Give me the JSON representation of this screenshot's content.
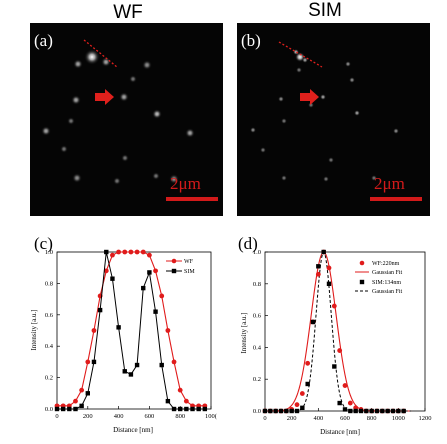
{
  "titles": {
    "left": "WF",
    "right": "SIM"
  },
  "panels": {
    "a": "(a)",
    "b": "(b)",
    "c": "(c)",
    "d": "(d)"
  },
  "scale_bar": {
    "a": "2μm",
    "b": "2μm"
  },
  "colors": {
    "wf": "#e01b1b",
    "sim": "#000000",
    "arrow": "#e0201c",
    "image_bg": "#050505"
  },
  "chart_data": [
    {
      "type": "line",
      "panel": "c",
      "xlabel": "Distance [nm]",
      "ylabel": "Intensity [a.u.]",
      "xlim": [
        0,
        1000
      ],
      "ylim": [
        0,
        1.0
      ],
      "xticks": [
        "0",
        "200",
        "400",
        "600",
        "800",
        "100("
      ],
      "yticks": [
        "0.0",
        "0.2",
        "0.4",
        "0.6",
        "0.8",
        "1.0"
      ],
      "legend_position": "top-right",
      "series": [
        {
          "name": "WF",
          "style": "red-line-circles",
          "x": [
            0,
            40,
            80,
            120,
            160,
            200,
            240,
            280,
            320,
            360,
            400,
            440,
            480,
            520,
            560,
            600,
            640,
            680,
            720,
            760,
            800,
            840,
            880,
            920,
            960
          ],
          "y": [
            0.02,
            0.02,
            0.02,
            0.05,
            0.12,
            0.3,
            0.5,
            0.72,
            0.88,
            0.98,
            1.0,
            1.0,
            1.0,
            1.0,
            1.0,
            0.98,
            0.88,
            0.72,
            0.5,
            0.3,
            0.12,
            0.05,
            0.02,
            0.02,
            0.02
          ]
        },
        {
          "name": "SIM",
          "style": "black-line-squares",
          "x": [
            0,
            40,
            80,
            120,
            160,
            200,
            240,
            280,
            320,
            360,
            400,
            440,
            480,
            520,
            560,
            600,
            640,
            680,
            720,
            760,
            800,
            840,
            880,
            920,
            960
          ],
          "y": [
            0.0,
            0.0,
            0.0,
            0.0,
            0.02,
            0.1,
            0.3,
            0.63,
            1.0,
            0.83,
            0.52,
            0.24,
            0.22,
            0.28,
            0.77,
            0.87,
            0.62,
            0.28,
            0.05,
            0.0,
            0.0,
            0.0,
            0.0,
            0.0,
            0.0
          ]
        }
      ]
    },
    {
      "type": "line",
      "panel": "d",
      "xlabel": "Distance [nm]",
      "ylabel": "Intensity [a.u.]",
      "xlim": [
        0,
        1200
      ],
      "ylim": [
        0,
        1.0
      ],
      "xticks": [
        "0",
        "200",
        "400",
        "600",
        "800",
        "1000",
        "1200"
      ],
      "yticks": [
        "0.0",
        "0.2",
        "0.4",
        "0.6",
        "0.8",
        "1.0"
      ],
      "legend_position": "top-right",
      "series": [
        {
          "name": "WF:220nm",
          "style": "red-circles",
          "x": [
            0,
            40,
            80,
            120,
            160,
            200,
            240,
            280,
            320,
            360,
            400,
            440,
            480,
            520,
            560,
            600,
            640,
            680,
            720,
            760,
            800,
            840,
            880,
            920,
            960,
            1000,
            1040
          ],
          "y": [
            0.0,
            0.0,
            0.0,
            0.0,
            0.0,
            0.01,
            0.04,
            0.11,
            0.3,
            0.56,
            0.86,
            1.0,
            0.9,
            0.66,
            0.38,
            0.16,
            0.05,
            0.02,
            0.01,
            0.0,
            0.0,
            0.0,
            0.0,
            0.0,
            0.0,
            0.0,
            0.0
          ]
        },
        {
          "name": "Gaussian Fit",
          "style": "red-line",
          "fit": {
            "mu": 440,
            "sigma": 93,
            "amp": 1.0
          }
        },
        {
          "name": "SIM:134nm",
          "style": "black-squares",
          "x": [
            0,
            40,
            80,
            120,
            160,
            200,
            240,
            280,
            320,
            360,
            400,
            440,
            480,
            520,
            560,
            600,
            640,
            680,
            720,
            760,
            800,
            840,
            880,
            920,
            960,
            1000,
            1040
          ],
          "y": [
            0.0,
            0.0,
            0.0,
            0.0,
            0.0,
            0.0,
            0.0,
            0.02,
            0.17,
            0.56,
            0.91,
            1.0,
            0.8,
            0.28,
            0.05,
            0.01,
            0.0,
            0.0,
            0.0,
            0.0,
            0.0,
            0.0,
            0.0,
            0.0,
            0.0,
            0.0,
            0.0
          ]
        },
        {
          "name": "Gaussian Fit",
          "style": "black-dashed",
          "fit": {
            "mu": 440,
            "sigma": 57,
            "amp": 1.0
          }
        }
      ]
    }
  ]
}
